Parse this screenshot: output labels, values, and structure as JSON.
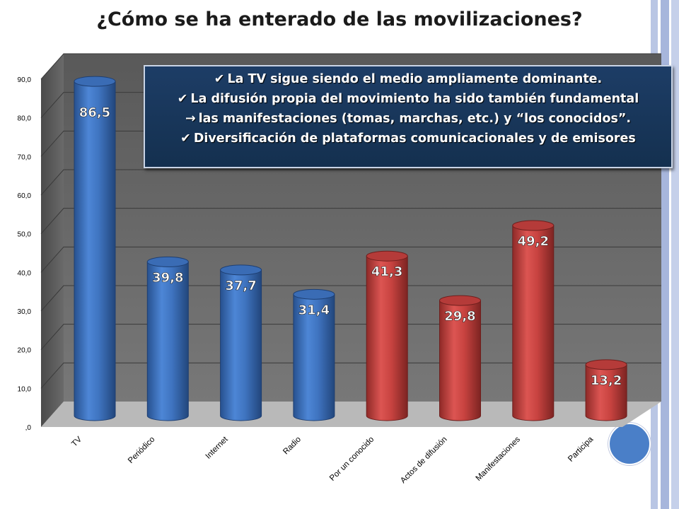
{
  "slide": {
    "title": "¿Cómo se ha enterado de las movilizaciones?"
  },
  "callout": {
    "lines": [
      {
        "marker": "✔",
        "text": "La TV sigue siendo el medio ampliamente dominante."
      },
      {
        "marker": "✔",
        "text": "La difusión propia del movimiento ha sido también fundamental"
      },
      {
        "marker": "→",
        "text": "las manifestaciones (tomas, marchas, etc.) y “los conocidos”."
      },
      {
        "marker": "✔",
        "text": "Diversificación de plataformas comunicacionales y de emisores"
      }
    ]
  },
  "chart_data": {
    "type": "bar",
    "title": "¿Cómo se ha enterado de las movilizaciones?",
    "categories": [
      "TV",
      "Periódico",
      "Internet",
      "Radio",
      "Por un conocido",
      "Actos de difusión",
      "Manifestaciones",
      "Participa"
    ],
    "values": [
      86.5,
      39.8,
      37.7,
      31.4,
      41.3,
      29.8,
      49.2,
      13.2
    ],
    "value_labels": [
      "86,5",
      "39,8",
      "37,7",
      "31,4",
      "41,3",
      "29,8",
      "49,2",
      "13,2"
    ],
    "bar_colors": [
      "#3f74c0",
      "#3f74c0",
      "#3f74c0",
      "#3f74c0",
      "#c84340",
      "#c84340",
      "#c84340",
      "#c84340"
    ],
    "y_ticks": [
      ",0",
      "10,0",
      "20,0",
      "30,0",
      "40,0",
      "50,0",
      "60,0",
      "70,0",
      "80,0",
      "90,0"
    ],
    "ylim": [
      0,
      90
    ],
    "grid": true,
    "style": "3d cylinder",
    "xlabel": "",
    "ylabel": ""
  }
}
